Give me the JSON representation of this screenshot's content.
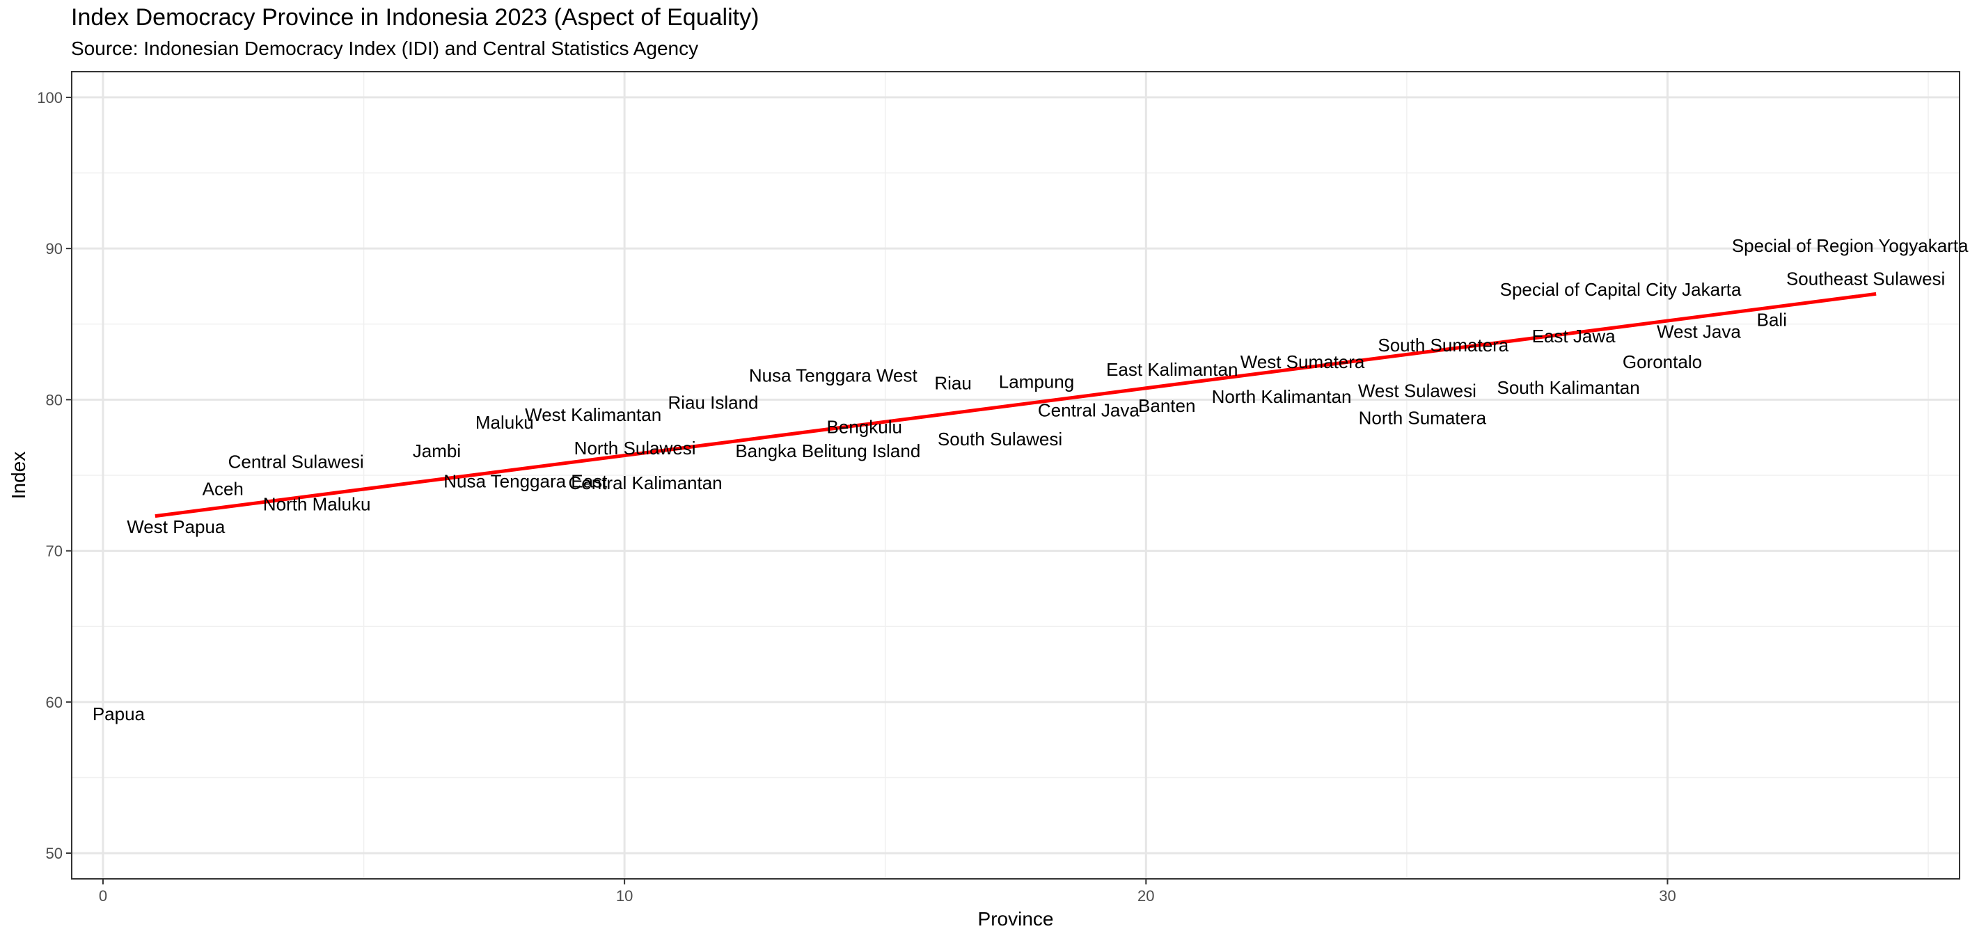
{
  "chart_data": {
    "type": "scatter",
    "title": "Index Democracy Province in Indonesia 2023 (Aspect of Equality)",
    "subtitle": "Source: Indonesian Democracy Index (IDI) and Central Statistics Agency",
    "xlabel": "Province",
    "ylabel": "Index",
    "xlim": [
      -0.6,
      35.6
    ],
    "ylim": [
      48.3,
      101.7
    ],
    "x_ticks": [
      0,
      10,
      20,
      30
    ],
    "y_ticks": [
      50,
      60,
      70,
      80,
      90,
      100
    ],
    "grid": true,
    "trend_line": {
      "color": "#ff0000",
      "x": [
        1,
        34
      ],
      "y": [
        72.3,
        87.0
      ]
    },
    "labels": [
      {
        "text": "Papua",
        "x": 0.3,
        "y": 59.2
      },
      {
        "text": "West Papua",
        "x": 1.4,
        "y": 71.6
      },
      {
        "text": "Aceh",
        "x": 2.3,
        "y": 74.1
      },
      {
        "text": "North Maluku",
        "x": 4.1,
        "y": 73.1
      },
      {
        "text": "Central Sulawesi",
        "x": 3.7,
        "y": 75.9
      },
      {
        "text": "Jambi",
        "x": 6.4,
        "y": 76.6
      },
      {
        "text": "Nusa Tenggara East",
        "x": 8.1,
        "y": 74.6
      },
      {
        "text": "Maluku",
        "x": 7.7,
        "y": 78.5
      },
      {
        "text": "West Kalimantan",
        "x": 9.4,
        "y": 79.0
      },
      {
        "text": "North Sulawesi",
        "x": 10.2,
        "y": 76.8
      },
      {
        "text": "Central Kalimantan",
        "x": 10.4,
        "y": 74.5
      },
      {
        "text": "Riau Island",
        "x": 11.7,
        "y": 79.8
      },
      {
        "text": "Nusa Tenggara West",
        "x": 14.0,
        "y": 81.6
      },
      {
        "text": "Bengkulu",
        "x": 14.6,
        "y": 78.2
      },
      {
        "text": "Bangka Belitung Island",
        "x": 13.9,
        "y": 76.6
      },
      {
        "text": "Riau",
        "x": 16.3,
        "y": 81.1
      },
      {
        "text": "South Sulawesi",
        "x": 17.2,
        "y": 77.4
      },
      {
        "text": "Lampung",
        "x": 17.9,
        "y": 81.2
      },
      {
        "text": "Central Java",
        "x": 18.9,
        "y": 79.3
      },
      {
        "text": "East Kalimantan",
        "x": 20.5,
        "y": 82.0
      },
      {
        "text": "Banten",
        "x": 20.4,
        "y": 79.6
      },
      {
        "text": "North Kalimantan",
        "x": 22.6,
        "y": 80.2
      },
      {
        "text": "West Sumatera",
        "x": 23.0,
        "y": 82.5
      },
      {
        "text": "West Sulawesi",
        "x": 25.2,
        "y": 80.6
      },
      {
        "text": "North Sumatera",
        "x": 25.3,
        "y": 78.8
      },
      {
        "text": "South Sumatera",
        "x": 25.7,
        "y": 83.6
      },
      {
        "text": "East Jawa",
        "x": 28.2,
        "y": 84.2
      },
      {
        "text": "South Kalimantan",
        "x": 28.1,
        "y": 80.8
      },
      {
        "text": "Special of Capital City Jakarta",
        "x": 29.1,
        "y": 87.3
      },
      {
        "text": "Gorontalo",
        "x": 29.9,
        "y": 82.5
      },
      {
        "text": "West Java",
        "x": 30.6,
        "y": 84.5
      },
      {
        "text": "Bali",
        "x": 32.0,
        "y": 85.3
      },
      {
        "text": "Southeast Sulawesi",
        "x": 33.8,
        "y": 88.0
      },
      {
        "text": "Special of Region Yogyakarta",
        "x": 33.5,
        "y": 90.2
      }
    ]
  }
}
